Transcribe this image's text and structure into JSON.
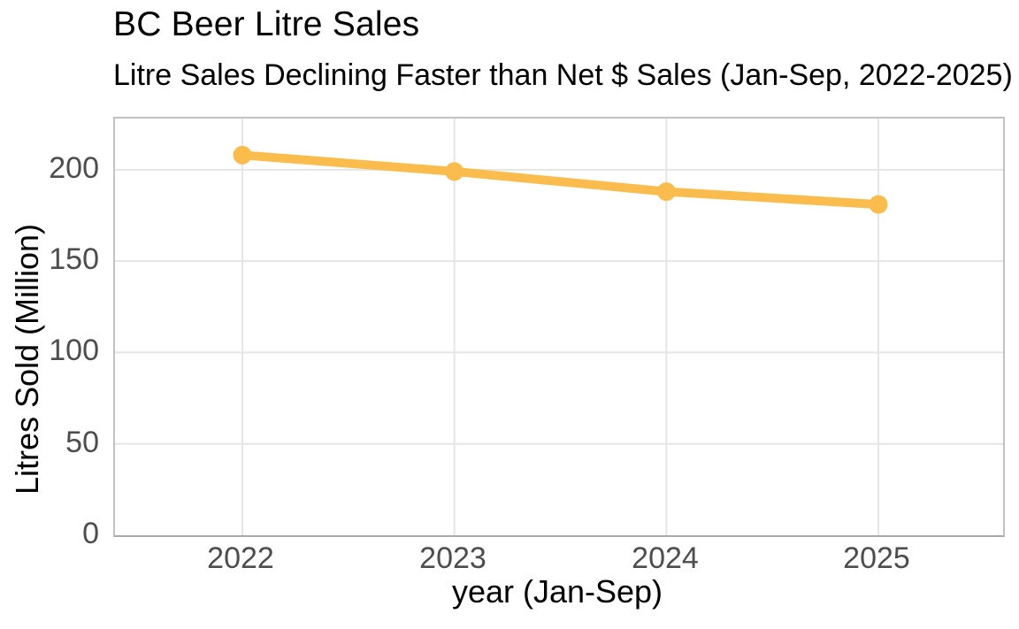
{
  "chart_data": {
    "type": "line",
    "title": "BC Beer Litre Sales",
    "subtitle": "Litre Sales Declining Faster than Net $ Sales (Jan-Sep, 2022-2025)",
    "xlabel": "year (Jan-Sep)",
    "ylabel": "Litres Sold (Million)",
    "x": [
      2022,
      2023,
      2024,
      2025
    ],
    "series": [
      {
        "name": "Litres Sold (Million)",
        "values": [
          208,
          199,
          188,
          181
        ]
      }
    ],
    "yticks": [
      0,
      50,
      100,
      150,
      200
    ],
    "ylim": [
      0,
      228
    ],
    "grid": true,
    "legend": "none",
    "colors": {
      "line": "#FABD4D",
      "point": "#FABD4D",
      "grid": "#E5E5E5",
      "panel_border": "#C2C2C2",
      "axis_line": "#A9A9A9",
      "tick_label": "#4D4D4D",
      "text": "#000000"
    }
  }
}
